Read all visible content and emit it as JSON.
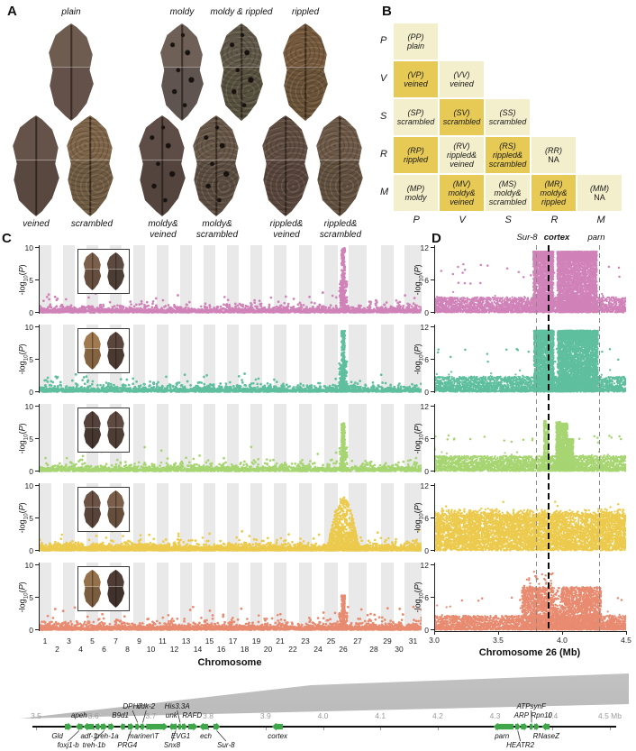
{
  "panels": {
    "a": "A",
    "b": "B",
    "c": "C",
    "d": "D"
  },
  "panel_a": {
    "top": [
      {
        "label_lines": [
          "plain"
        ],
        "texture": "plain",
        "color_top": "#6f5c50",
        "color_bot": "#63514a"
      },
      {
        "label_lines": [
          "moldy"
        ],
        "texture": "moldy",
        "color_top": "#6e6057",
        "color_bot": "#5f5450"
      },
      {
        "label_lines": [
          "moldy & rippled"
        ],
        "texture": "moldy-rippled",
        "color_top": "#5f5748",
        "color_bot": "#56503f"
      },
      {
        "label_lines": [
          "rippled"
        ],
        "texture": "rippled",
        "color_top": "#75593c",
        "color_bot": "#6a5338"
      }
    ],
    "bottom": [
      {
        "label_lines": [
          "veined"
        ],
        "texture": "veined",
        "color_top": "#655248",
        "color_bot": "#594840"
      },
      {
        "label_lines": [
          "scrambled"
        ],
        "texture": "scrambled",
        "color_top": "#7d6448",
        "color_bot": "#6f5a42"
      },
      {
        "label_lines": [
          "moldy&",
          "veined"
        ],
        "texture": "moldy-veined",
        "color_top": "#5e4c46",
        "color_bot": "#54443e"
      },
      {
        "label_lines": [
          "moldy&",
          "scrambled"
        ],
        "texture": "moldy-scrambled",
        "color_top": "#665648",
        "color_bot": "#5a4c40"
      },
      {
        "label_lines": [
          "rippled&",
          "veined"
        ],
        "texture": "rippled-veined",
        "color_top": "#5f4c41",
        "color_bot": "#57453c"
      },
      {
        "label_lines": [
          "rippled&",
          "scrambled"
        ],
        "texture": "rippled-scrambled",
        "color_top": "#6c5847",
        "color_bot": "#61503f"
      }
    ]
  },
  "panel_b": {
    "row_labels": [
      "P",
      "V",
      "S",
      "R",
      "M"
    ],
    "col_labels": [
      "P",
      "V",
      "S",
      "R",
      "M"
    ],
    "colors": {
      "light": "#f3eecb",
      "dark": "#e7ca55"
    },
    "cells": [
      {
        "row": 0,
        "col": 0,
        "code": "(PP)",
        "name_lines": [
          "plain"
        ]
      },
      {
        "row": 1,
        "col": 0,
        "code": "(VP)",
        "name_lines": [
          "veined"
        ]
      },
      {
        "row": 1,
        "col": 1,
        "code": "(VV)",
        "name_lines": [
          "veined"
        ]
      },
      {
        "row": 2,
        "col": 0,
        "code": "(SP)",
        "name_lines": [
          "scrambled"
        ]
      },
      {
        "row": 2,
        "col": 1,
        "code": "(SV)",
        "name_lines": [
          "scrambled"
        ]
      },
      {
        "row": 2,
        "col": 2,
        "code": "(SS)",
        "name_lines": [
          "scrambled"
        ]
      },
      {
        "row": 3,
        "col": 0,
        "code": "(RP)",
        "name_lines": [
          "rippled"
        ]
      },
      {
        "row": 3,
        "col": 1,
        "code": "(RV)",
        "name_lines": [
          "rippled&",
          "veined"
        ]
      },
      {
        "row": 3,
        "col": 2,
        "code": "(RS)",
        "name_lines": [
          "rippled&",
          "scrambled"
        ]
      },
      {
        "row": 3,
        "col": 3,
        "code": "(RR)",
        "name_lines": [
          "NA"
        ],
        "na": true
      },
      {
        "row": 4,
        "col": 0,
        "code": "(MP)",
        "name_lines": [
          "moldy"
        ]
      },
      {
        "row": 4,
        "col": 1,
        "code": "(MV)",
        "name_lines": [
          "moldy&",
          "veined"
        ]
      },
      {
        "row": 4,
        "col": 2,
        "code": "(MS)",
        "name_lines": [
          "moldy&",
          "scrambled"
        ]
      },
      {
        "row": 4,
        "col": 3,
        "code": "(MR)",
        "name_lines": [
          "moldy&",
          "rippled"
        ]
      },
      {
        "row": 4,
        "col": 4,
        "code": "(MM)",
        "name_lines": [
          "NA"
        ],
        "na": true
      }
    ]
  },
  "chart_data": [
    {
      "type": "scatter",
      "name": "gwas_manhattan_panel_C",
      "xlabel": "Chromosome",
      "ylabel": "-log10(P)",
      "ylim": [
        0,
        10
      ],
      "yticks": [
        0,
        5,
        10
      ],
      "chromosome_ticks": [
        1,
        2,
        3,
        4,
        5,
        6,
        7,
        8,
        9,
        10,
        11,
        12,
        13,
        14,
        15,
        16,
        17,
        18,
        19,
        20,
        21,
        22,
        23,
        24,
        25,
        26,
        27,
        28,
        29,
        30,
        31
      ],
      "peak_chromosome": 26,
      "rows": [
        {
          "id": "pink",
          "color": "#d083b8",
          "seed": 11,
          "baseline_n": 1500,
          "outliers": [
            10,
            3.1
          ],
          "peak": {
            "max": 9.9,
            "shape": "spike"
          },
          "inset_colors": [
            "#7b5f4a",
            "#5c4a41"
          ]
        },
        {
          "id": "teal",
          "color": "#5fbf9e",
          "seed": 22,
          "baseline_n": 1400,
          "outliers": [
            8,
            3.0
          ],
          "peak": {
            "max": 9.4,
            "shape": "spike"
          },
          "inset_colors": [
            "#a1794e",
            "#5a463c"
          ]
        },
        {
          "id": "green",
          "color": "#a6d572",
          "seed": 33,
          "baseline_n": 1300,
          "outliers": [
            7,
            4.2
          ],
          "peak": {
            "max": 7.4,
            "shape": "spike"
          },
          "inset_colors": [
            "#54423a",
            "#5e4a40"
          ]
        },
        {
          "id": "yellow",
          "color": "#ecca4d",
          "seed": 44,
          "baseline_n": 2200,
          "outliers": [
            12,
            3.4
          ],
          "peak": {
            "max": 8.2,
            "shape": "hill"
          },
          "inset_colors": [
            "#6b5244",
            "#7c5f4a"
          ]
        },
        {
          "id": "salmon",
          "color": "#e88b70",
          "seed": 55,
          "baseline_n": 1700,
          "outliers": [
            26,
            3.8
          ],
          "peak": {
            "max": 5.3,
            "shape": "spike"
          },
          "inset_colors": [
            "#95714b",
            "#4e3c35"
          ]
        }
      ]
    },
    {
      "type": "scatter",
      "name": "chr26_zoom_panel_D",
      "xlabel": "Chromosome 26 (Mb)",
      "ylabel": "-log10(P)",
      "xlim": [
        3.0,
        4.5
      ],
      "xticks": [
        "3.0",
        "3.5",
        "4.0",
        "4.5"
      ],
      "ylim": [
        0,
        12
      ],
      "yticks": [
        0,
        6,
        12
      ],
      "vlines": [
        {
          "label": "Sur-8",
          "mb": 3.8,
          "style": "dashed-gray"
        },
        {
          "label": "cortex",
          "mb": 3.895,
          "style": "dashed-black-bold"
        },
        {
          "label": "parn",
          "mb": 4.295,
          "style": "dashed-gray"
        }
      ],
      "rows": [
        {
          "id": "pink",
          "color": "#d083b8",
          "seed": 101,
          "blocks": [
            [
              3.775,
              3.932,
              11.25,
              1500,
              1
            ],
            [
              3.962,
              4.272,
              11.25,
              2800,
              1
            ]
          ],
          "outliers": [
            26,
            9.0
          ]
        },
        {
          "id": "teal",
          "color": "#5fbf9e",
          "seed": 102,
          "blocks": [
            [
              3.78,
              3.935,
              11.3,
              1500,
              1
            ],
            [
              3.965,
              4.28,
              11.3,
              2900,
              1
            ]
          ],
          "outliers": [
            20,
            8.0
          ]
        },
        {
          "id": "green",
          "color": "#a6d572",
          "seed": 103,
          "blocks": [
            [
              3.858,
              3.873,
              9.3,
              170,
              0
            ],
            [
              3.882,
              3.895,
              8.7,
              150,
              0
            ],
            [
              3.953,
              3.988,
              9.1,
              320,
              0
            ],
            [
              3.99,
              4.042,
              8.8,
              430,
              0
            ],
            [
              4.042,
              4.088,
              5.9,
              460,
              0
            ]
          ],
          "outliers": [
            22,
            6.8
          ]
        },
        {
          "id": "yellow",
          "color": "#ecca4d",
          "seed": 104,
          "mode": "dense",
          "dense_top": 6.3,
          "dense_n": 5200,
          "dip": [
            4.03,
            4.17
          ],
          "outliers": [
            16,
            9.2
          ]
        },
        {
          "id": "salmon",
          "color": "#e88b70",
          "seed": 105,
          "block5": [
            3.685,
            4.305,
            7.9,
            2600
          ],
          "gap": [
            3.935,
            3.995
          ],
          "tall": [
            3.7,
            3.93,
            10.8,
            26
          ],
          "outliers": [
            12,
            6.3
          ]
        }
      ]
    }
  ],
  "gene_track": {
    "unit": "Mb",
    "ticks": [
      {
        "v": 3.5,
        "label": "3.5"
      },
      {
        "v": 3.6,
        "label": "3.6"
      },
      {
        "v": 3.7,
        "label": "3.7"
      },
      {
        "v": 3.8,
        "label": "3.8"
      },
      {
        "v": 3.9,
        "label": "3.9"
      },
      {
        "v": 4.0,
        "label": "4.0"
      },
      {
        "v": 4.1,
        "label": "4.1"
      },
      {
        "v": 4.2,
        "label": "4.2"
      },
      {
        "v": 4.3,
        "label": "4.3"
      },
      {
        "v": 4.4,
        "label": "4.4"
      },
      {
        "v": 4.5,
        "label": "4.5 Mb"
      }
    ],
    "genes": [
      {
        "name": "Gld",
        "mb": 3.55,
        "len": 0.013,
        "dir": 1,
        "row": "below1",
        "lmb": 3.537
      },
      {
        "name": "foxj1-b",
        "mb": 3.569,
        "len": 0.012,
        "dir": -1,
        "row": "below2",
        "lmb": 3.556
      },
      {
        "name": "apeh",
        "mb": 3.582,
        "len": 0.019,
        "dir": -1,
        "row": "above1",
        "lmb": 3.575
      },
      {
        "name": "adf-1",
        "mb": 3.604,
        "len": 0.009,
        "dir": 1,
        "row": "below1",
        "lmb": 3.592
      },
      {
        "name": "treh-1b",
        "mb": 3.613,
        "len": 0.011,
        "dir": 1,
        "row": "below2",
        "lmb": 3.601
      },
      {
        "name": "treh-1a",
        "mb": 3.626,
        "len": 0.011,
        "dir": 1,
        "row": "below1",
        "lmb": 3.624
      },
      {
        "name": "B9d1",
        "mb": 3.646,
        "len": 0.009,
        "dir": -1,
        "row": "above1",
        "lmb": 3.647
      },
      {
        "name": "PRG4",
        "mb": 3.66,
        "len": 0.011,
        "dir": 1,
        "row": "below2",
        "lmb": 3.659
      },
      {
        "name": "DPH7",
        "mb": 3.673,
        "len": 0.008,
        "dir": 1,
        "row": "above2",
        "lmb": 3.668
      },
      {
        "name": "cdk-2",
        "mb": 3.682,
        "len": 0.008,
        "dir": 1,
        "row": "above2",
        "lmb": 3.692
      },
      {
        "name": "mariner\\T",
        "mb": 3.692,
        "len": 0.038,
        "dir": 1,
        "row": "below1",
        "lmb": 3.687
      },
      {
        "name": "unk",
        "mb": 3.732,
        "len": 0.008,
        "dir": -1,
        "row": "above1",
        "lmb": 3.736
      },
      {
        "name": "Snx8",
        "mb": 3.74,
        "len": 0.007,
        "dir": 1,
        "row": "below2",
        "lmb": 3.737
      },
      {
        "name": "His3.3A",
        "mb": 3.748,
        "len": 0.006,
        "dir": 1,
        "row": "above2",
        "lmb": 3.746
      },
      {
        "name": "EVG1",
        "mb": 3.754,
        "len": 0.009,
        "dir": 1,
        "row": "below1",
        "lmb": 3.752
      },
      {
        "name": "RAFD",
        "mb": 3.765,
        "len": 0.017,
        "dir": 1,
        "row": "above1",
        "lmb": 3.772
      },
      {
        "name": "ech",
        "mb": 3.784,
        "len": 0.016,
        "dir": -1,
        "row": "below1",
        "lmb": 3.796
      },
      {
        "name": "Sur-8",
        "mb": 3.809,
        "len": 0.012,
        "dir": 1,
        "row": "below2",
        "lmb": 3.831
      },
      {
        "name": "cortex",
        "mb": 3.911,
        "len": 0.019,
        "dir": -1,
        "row": "below1",
        "lmb": 3.921
      },
      {
        "name": "parn",
        "mb": 4.297,
        "len": 0.035,
        "dir": -1,
        "row": "below1",
        "lmb": 4.312
      },
      {
        "name": "HEATR2",
        "mb": 4.335,
        "len": 0.009,
        "dir": 1,
        "row": "below2",
        "lmb": 4.344
      },
      {
        "name": "ARP",
        "mb": 4.345,
        "len": 0.012,
        "dir": 1,
        "row": "above1",
        "lmb": 4.346
      },
      {
        "name": "ATPsynF",
        "mb": 4.36,
        "len": 0.007,
        "dir": 1,
        "row": "above2",
        "lmb": 4.363
      },
      {
        "name": "Rpn10",
        "mb": 4.368,
        "len": 0.009,
        "dir": 1,
        "row": "above1",
        "lmb": 4.381
      },
      {
        "name": "RNaseZ",
        "mb": 4.381,
        "len": 0.014,
        "dir": -1,
        "row": "below1",
        "lmb": 4.389
      }
    ]
  }
}
